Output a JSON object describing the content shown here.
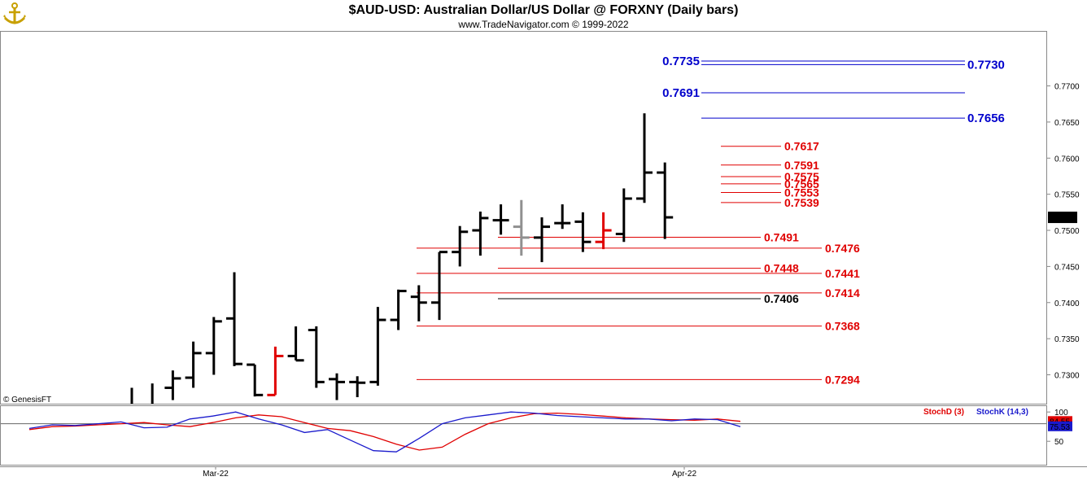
{
  "header": {
    "title": "$AUD-USD:  Australian Dollar/US Dollar @ FORXNY  (Daily bars)",
    "subtitle": "www.TradeNavigator.com © 1999-2022",
    "logo_icon": "anchor-icon",
    "watermark": "© GenesisFT"
  },
  "colors": {
    "bar": "#000000",
    "bar_red": "#e00000",
    "bar_gray": "#909090",
    "blue_level": "#0000cc",
    "red_level": "#e00000",
    "black_level": "#000000",
    "stoch_d": "#e00000",
    "stoch_k": "#1a1acc",
    "last_price_bg": "#000000"
  },
  "chart_data": [
    {
      "type": "ohlc",
      "title": "$AUD-USD:  Australian Dollar/US Dollar @ FORXNY  (Daily bars)",
      "ylim": [
        0.726,
        0.7775
      ],
      "y_ticks": [
        "0.7700",
        "0.7650",
        "0.7600",
        "0.7550",
        "0.7500",
        "0.7450",
        "0.7400",
        "0.7350",
        "0.7300"
      ],
      "x_ticks": [
        "Mar-22",
        "Apr-22"
      ],
      "last_price": "0.7518",
      "bars": [
        {
          "o": null,
          "h": 0.7282,
          "l": 0.726,
          "c": null,
          "color": "black"
        },
        {
          "o": null,
          "h": 0.7288,
          "l": 0.726,
          "c": null,
          "color": "black"
        },
        {
          "o": 0.7282,
          "h": 0.7306,
          "l": 0.7265,
          "c": 0.7295,
          "color": "black"
        },
        {
          "o": 0.7296,
          "h": 0.7346,
          "l": 0.7282,
          "c": 0.733,
          "color": "black"
        },
        {
          "o": 0.733,
          "h": 0.738,
          "l": 0.73,
          "c": 0.7374,
          "color": "black"
        },
        {
          "o": 0.7378,
          "h": 0.7442,
          "l": 0.7312,
          "c": 0.7315,
          "color": "black"
        },
        {
          "o": 0.7314,
          "h": 0.7314,
          "l": 0.727,
          "c": 0.7272,
          "color": "black"
        },
        {
          "o": 0.7272,
          "h": 0.7339,
          "l": 0.7272,
          "c": 0.7326,
          "color": "red"
        },
        {
          "o": 0.7326,
          "h": 0.7367,
          "l": 0.732,
          "c": 0.732,
          "color": "black"
        },
        {
          "o": 0.7362,
          "h": 0.7367,
          "l": 0.7282,
          "c": 0.729,
          "color": "black"
        },
        {
          "o": 0.7294,
          "h": 0.7302,
          "l": 0.7265,
          "c": 0.729,
          "color": "black"
        },
        {
          "o": 0.729,
          "h": 0.7298,
          "l": 0.7269,
          "c": 0.7289,
          "color": "black"
        },
        {
          "o": 0.729,
          "h": 0.7394,
          "l": 0.7285,
          "c": 0.7376,
          "color": "black"
        },
        {
          "o": 0.7376,
          "h": 0.7418,
          "l": 0.7362,
          "c": 0.7416,
          "color": "black"
        },
        {
          "o": 0.7408,
          "h": 0.7424,
          "l": 0.7374,
          "c": 0.74,
          "color": "black"
        },
        {
          "o": 0.74,
          "h": 0.747,
          "l": 0.7376,
          "c": 0.747,
          "color": "black"
        },
        {
          "o": 0.747,
          "h": 0.7506,
          "l": 0.745,
          "c": 0.7498,
          "color": "black"
        },
        {
          "o": 0.75,
          "h": 0.7526,
          "l": 0.7465,
          "c": 0.7517,
          "color": "black"
        },
        {
          "o": 0.7514,
          "h": 0.7536,
          "l": 0.7494,
          "c": 0.7514,
          "color": "black"
        },
        {
          "o": 0.7505,
          "h": 0.7542,
          "l": 0.7465,
          "c": 0.749,
          "color": "gray"
        },
        {
          "o": 0.749,
          "h": 0.7518,
          "l": 0.7456,
          "c": 0.7505,
          "color": "black"
        },
        {
          "o": 0.751,
          "h": 0.7536,
          "l": 0.7502,
          "c": 0.751,
          "color": "black"
        },
        {
          "o": 0.7512,
          "h": 0.7525,
          "l": 0.747,
          "c": 0.7484,
          "color": "black"
        },
        {
          "o": 0.7484,
          "h": 0.7525,
          "l": 0.7474,
          "c": 0.75,
          "color": "red"
        },
        {
          "o": 0.7495,
          "h": 0.7558,
          "l": 0.7484,
          "c": 0.7544,
          "color": "black"
        },
        {
          "o": 0.7544,
          "h": 0.7662,
          "l": 0.7538,
          "c": 0.758,
          "color": "black"
        },
        {
          "o": 0.758,
          "h": 0.7594,
          "l": 0.7488,
          "c": 0.7518,
          "color": "black"
        }
      ],
      "levels": [
        {
          "value": 0.7735,
          "label": "0.7735",
          "color": "blue",
          "side": "left"
        },
        {
          "value": 0.773,
          "label": "0.7730",
          "color": "blue",
          "side": "right"
        },
        {
          "value": 0.7691,
          "label": "0.7691",
          "color": "blue",
          "side": "left"
        },
        {
          "value": 0.7656,
          "label": "0.7656",
          "color": "blue",
          "side": "right"
        },
        {
          "value": 0.7617,
          "label": "0.7617",
          "color": "red",
          "side": "right"
        },
        {
          "value": 0.7591,
          "label": "0.7591",
          "color": "red",
          "side": "right"
        },
        {
          "value": 0.7575,
          "label": "0.7575",
          "color": "red",
          "side": "right"
        },
        {
          "value": 0.7565,
          "label": "0.7565",
          "color": "red",
          "side": "right"
        },
        {
          "value": 0.7553,
          "label": "0.7553",
          "color": "red",
          "side": "right"
        },
        {
          "value": 0.7539,
          "label": "0.7539",
          "color": "red",
          "side": "right"
        },
        {
          "value": 0.7491,
          "label": "0.7491",
          "color": "red",
          "side": "right"
        },
        {
          "value": 0.7476,
          "label": "0.7476",
          "color": "red",
          "side": "right"
        },
        {
          "value": 0.7448,
          "label": "0.7448",
          "color": "red",
          "side": "right"
        },
        {
          "value": 0.7441,
          "label": "0.7441",
          "color": "red",
          "side": "right"
        },
        {
          "value": 0.7414,
          "label": "0.7414",
          "color": "red",
          "side": "right"
        },
        {
          "value": 0.7406,
          "label": "0.7406",
          "color": "black",
          "side": "right"
        },
        {
          "value": 0.7368,
          "label": "0.7368",
          "color": "red",
          "side": "right"
        },
        {
          "value": 0.7294,
          "label": "0.7294",
          "color": "red",
          "side": "right"
        }
      ]
    },
    {
      "type": "line",
      "ylim": [
        10,
        110
      ],
      "y_ticks": [
        "100",
        "50"
      ],
      "legend": [
        "StochD (3)",
        "StochK (14,3)"
      ],
      "last_values": [
        "84.55",
        "75.53"
      ],
      "series": [
        {
          "name": "StochD (3)",
          "color": "red",
          "values": [
            70,
            75,
            76,
            78,
            80,
            82,
            78,
            75,
            82,
            90,
            95,
            92,
            82,
            72,
            68,
            58,
            45,
            35,
            40,
            62,
            80,
            90,
            97,
            98,
            96,
            93,
            90,
            88,
            87,
            86,
            88,
            84
          ]
        },
        {
          "name": "StochK (14,3)",
          "color": "blue",
          "values": [
            72,
            78,
            77,
            80,
            83,
            73,
            74,
            88,
            93,
            100,
            88,
            78,
            65,
            70,
            52,
            34,
            32,
            55,
            80,
            90,
            95,
            100,
            98,
            94,
            92,
            90,
            88,
            88,
            85,
            88,
            87,
            75
          ]
        }
      ]
    }
  ]
}
